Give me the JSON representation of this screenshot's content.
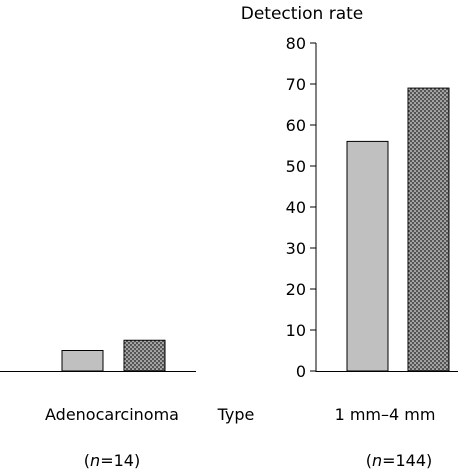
{
  "chart_data": {
    "type": "bar",
    "title": "Detection rate",
    "xlabel": "Type",
    "ylabel": "",
    "ylim": [
      0,
      80
    ],
    "yticks": [
      0,
      10,
      20,
      30,
      40,
      50,
      60,
      70,
      80
    ],
    "groups": [
      {
        "label": "Adenocarcinoma",
        "n_label": "=14",
        "values": [
          5,
          7.5
        ]
      },
      {
        "label": "1 mm–4 mm",
        "n_label": "=144",
        "values": [
          56,
          69
        ]
      }
    ],
    "n_symbol": "n",
    "series_styles": [
      {
        "fill": "#c0c0c0",
        "pattern": "solid"
      },
      {
        "fill": "#555555",
        "pattern": "dotted"
      }
    ],
    "grid": false,
    "legend": "none"
  }
}
